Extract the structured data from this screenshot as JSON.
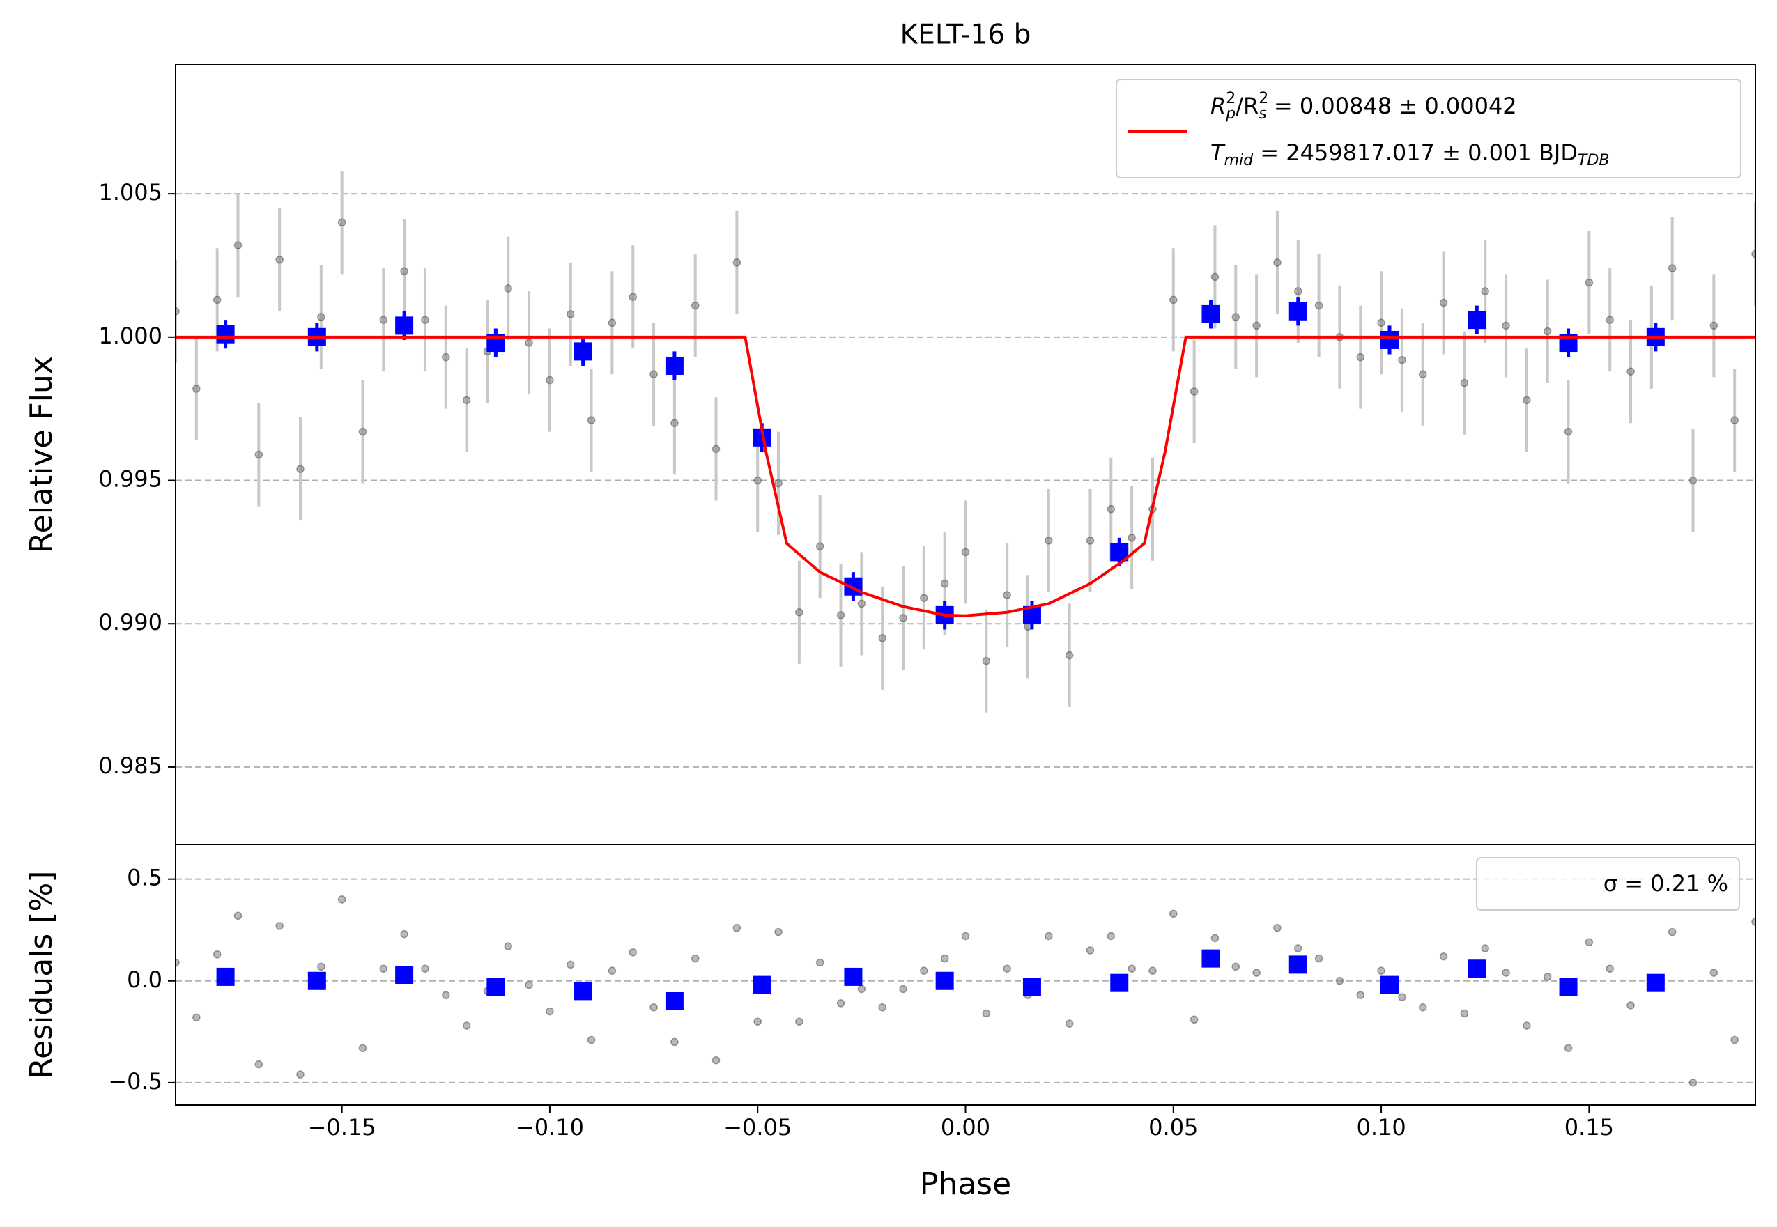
{
  "chart_data": [
    {
      "type": "scatter",
      "title": "KELT-16 b",
      "ylabel": "Relative Flux",
      "xlim": [
        -0.19,
        0.19
      ],
      "ylim": [
        0.9823,
        1.0095
      ],
      "yticks": [
        {
          "value": 0.985,
          "label": "0.985"
        },
        {
          "value": 0.99,
          "label": "0.990"
        },
        {
          "value": 0.995,
          "label": "0.995"
        },
        {
          "value": 1.0,
          "label": "1.000"
        },
        {
          "value": 1.005,
          "label": "1.005"
        }
      ],
      "grid": true,
      "legend": "upper right",
      "series": [
        {
          "marker": "circle",
          "color": "#808080",
          "error": 0.0018,
          "x": [
            -0.19,
            -0.185,
            -0.18,
            -0.175,
            -0.17,
            -0.165,
            -0.16,
            -0.155,
            -0.15,
            -0.145,
            -0.14,
            -0.135,
            -0.13,
            -0.125,
            -0.12,
            -0.115,
            -0.11,
            -0.105,
            -0.1,
            -0.095,
            -0.09,
            -0.085,
            -0.08,
            -0.075,
            -0.07,
            -0.065,
            -0.06,
            -0.055,
            -0.05,
            -0.045,
            -0.04,
            -0.035,
            -0.03,
            -0.025,
            -0.02,
            -0.015,
            -0.01,
            -0.005,
            0,
            0.005,
            0.01,
            0.015,
            0.02,
            0.025,
            0.03,
            0.035,
            0.04,
            0.045,
            0.05,
            0.055,
            0.06,
            0.065,
            0.07,
            0.075,
            0.08,
            0.085,
            0.09,
            0.095,
            0.1,
            0.105,
            0.11,
            0.115,
            0.12,
            0.125,
            0.13,
            0.135,
            0.14,
            0.145,
            0.15,
            0.155,
            0.16,
            0.165,
            0.17,
            0.175,
            0.18,
            0.185,
            0.19
          ],
          "values": [
            1.0009,
            0.9982,
            1.0013,
            1.0032,
            0.9959,
            1.0027,
            0.9954,
            1.0007,
            1.004,
            0.9967,
            1.0006,
            1.0023,
            1.0006,
            0.9993,
            0.9978,
            0.9995,
            1.0017,
            0.9998,
            0.9985,
            1.0008,
            0.9971,
            1.0005,
            1.0014,
            0.9987,
            0.997,
            1.0011,
            0.9961,
            1.0026,
            0.995,
            0.9949,
            0.9904,
            0.9927,
            0.9903,
            0.9907,
            0.9895,
            0.9902,
            0.9909,
            0.9914,
            0.9925,
            0.9887,
            0.991,
            0.9899,
            0.9929,
            0.9889,
            0.9929,
            0.994,
            0.993,
            0.994,
            1.0013,
            0.9981,
            1.0021,
            1.0007,
            1.0004,
            1.0026,
            1.0016,
            1.0011,
            1.0,
            0.9993,
            1.0005,
            0.9992,
            0.9987,
            1.0012,
            0.9984,
            1.0016,
            1.0004,
            0.9978,
            1.0002,
            0.9967,
            1.0019,
            1.0006,
            0.9988,
            1.0,
            1.0024,
            0.995,
            1.0004,
            0.9971,
            1.0029
          ]
        },
        {
          "marker": "square",
          "color": "#0000ff",
          "error": 0.0005,
          "x": [
            -0.178,
            -0.156,
            -0.135,
            -0.113,
            -0.092,
            -0.07,
            -0.049,
            -0.027,
            -0.005,
            0.016,
            0.037,
            0.059,
            0.08,
            0.102,
            0.123,
            0.145,
            0.166
          ],
          "values": [
            1.0001,
            1.0,
            1.0004,
            0.9998,
            0.9995,
            0.999,
            0.9965,
            0.9913,
            0.9903,
            0.9903,
            0.9925,
            1.0008,
            1.0009,
            0.9999,
            1.0006,
            0.9998,
            1.0
          ]
        },
        {
          "marker": "line",
          "color": "#ff0000",
          "name_parts": [
            [
              "R",
              "2",
              "p",
              "/R",
              "2",
              "s",
              " = 0.00848 ± 0.00042"
            ],
            [
              "T",
              "mid",
              " = 2459817.017 ± 0.001 BJD",
              "TDB"
            ]
          ],
          "x": [
            -0.19,
            -0.053,
            -0.048,
            -0.043,
            -0.035,
            -0.025,
            -0.015,
            -0.005,
            0,
            0.01,
            0.02,
            0.03,
            0.038,
            0.043,
            0.048,
            0.053,
            0.19
          ],
          "values": [
            1.0,
            1.0,
            0.996,
            0.9928,
            0.9918,
            0.9911,
            0.9906,
            0.9903,
            0.99028,
            0.9904,
            0.9907,
            0.9914,
            0.9922,
            0.9928,
            0.996,
            1.0,
            1.0
          ]
        }
      ]
    },
    {
      "type": "scatter",
      "ylabel": "Residuals [%]",
      "xlabel": "Phase",
      "xlim": [
        -0.19,
        0.19
      ],
      "ylim": [
        -0.61,
        0.67
      ],
      "xticks": [
        {
          "value": -0.15,
          "label": "−0.15"
        },
        {
          "value": -0.1,
          "label": "−0.10"
        },
        {
          "value": -0.05,
          "label": "−0.05"
        },
        {
          "value": 0,
          "label": "0.00"
        },
        {
          "value": 0.05,
          "label": "0.05"
        },
        {
          "value": 0.1,
          "label": "0.10"
        },
        {
          "value": 0.15,
          "label": "0.15"
        }
      ],
      "yticks": [
        {
          "value": -0.5,
          "label": "−0.5"
        },
        {
          "value": 0,
          "label": "0.0"
        },
        0.5
      ],
      "grid": true,
      "legend": "upper right",
      "series": [
        {
          "marker": "circle",
          "color": "#808080",
          "name": "σ = 0.21 %",
          "x": [
            -0.19,
            -0.185,
            -0.18,
            -0.175,
            -0.17,
            -0.165,
            -0.16,
            -0.155,
            -0.15,
            -0.145,
            -0.14,
            -0.135,
            -0.13,
            -0.125,
            -0.12,
            -0.115,
            -0.11,
            -0.105,
            -0.1,
            -0.095,
            -0.09,
            -0.085,
            -0.08,
            -0.075,
            -0.07,
            -0.065,
            -0.06,
            -0.055,
            -0.05,
            -0.045,
            -0.04,
            -0.035,
            -0.03,
            -0.025,
            -0.02,
            -0.015,
            -0.01,
            -0.005,
            0,
            0.005,
            0.01,
            0.015,
            0.02,
            0.025,
            0.03,
            0.035,
            0.04,
            0.045,
            0.05,
            0.055,
            0.06,
            0.065,
            0.07,
            0.075,
            0.08,
            0.085,
            0.09,
            0.095,
            0.1,
            0.105,
            0.11,
            0.115,
            0.12,
            0.125,
            0.13,
            0.135,
            0.14,
            0.145,
            0.15,
            0.155,
            0.16,
            0.165,
            0.17,
            0.175,
            0.18,
            0.185,
            0.19
          ],
          "values": [
            0.09,
            -0.18,
            0.13,
            0.32,
            -0.41,
            0.27,
            -0.46,
            0.07,
            0.4,
            -0.33,
            0.06,
            0.23,
            0.06,
            -0.07,
            -0.22,
            -0.05,
            0.17,
            -0.02,
            -0.15,
            0.08,
            -0.29,
            0.05,
            0.14,
            -0.13,
            -0.3,
            0.11,
            -0.39,
            0.26,
            -0.2,
            0.24,
            -0.2,
            0.09,
            -0.11,
            -0.04,
            -0.13,
            -0.04,
            0.05,
            0.11,
            0.22,
            -0.16,
            0.06,
            -0.07,
            0.22,
            -0.21,
            0.15,
            0.22,
            0.06,
            0.05,
            0.33,
            -0.19,
            0.21,
            0.07,
            0.04,
            0.26,
            0.16,
            0.11,
            0,
            -0.07,
            0.05,
            -0.08,
            -0.13,
            0.12,
            -0.16,
            0.16,
            0.04,
            -0.22,
            0.02,
            -0.33,
            0.19,
            0.06,
            -0.12,
            0,
            0.24,
            -0.5,
            0.04,
            -0.29,
            0.29
          ]
        },
        {
          "marker": "square",
          "color": "#0000ff",
          "x": [
            -0.178,
            -0.156,
            -0.135,
            -0.113,
            -0.092,
            -0.07,
            -0.049,
            -0.027,
            -0.005,
            0.016,
            0.037,
            0.059,
            0.08,
            0.102,
            0.123,
            0.145,
            0.166
          ],
          "values": [
            0.02,
            0,
            0.03,
            -0.03,
            -0.05,
            -0.1,
            -0.02,
            0.02,
            0,
            -0.03,
            -0.01,
            0.11,
            0.08,
            -0.02,
            0.06,
            -0.03,
            -0.01
          ]
        }
      ]
    }
  ]
}
